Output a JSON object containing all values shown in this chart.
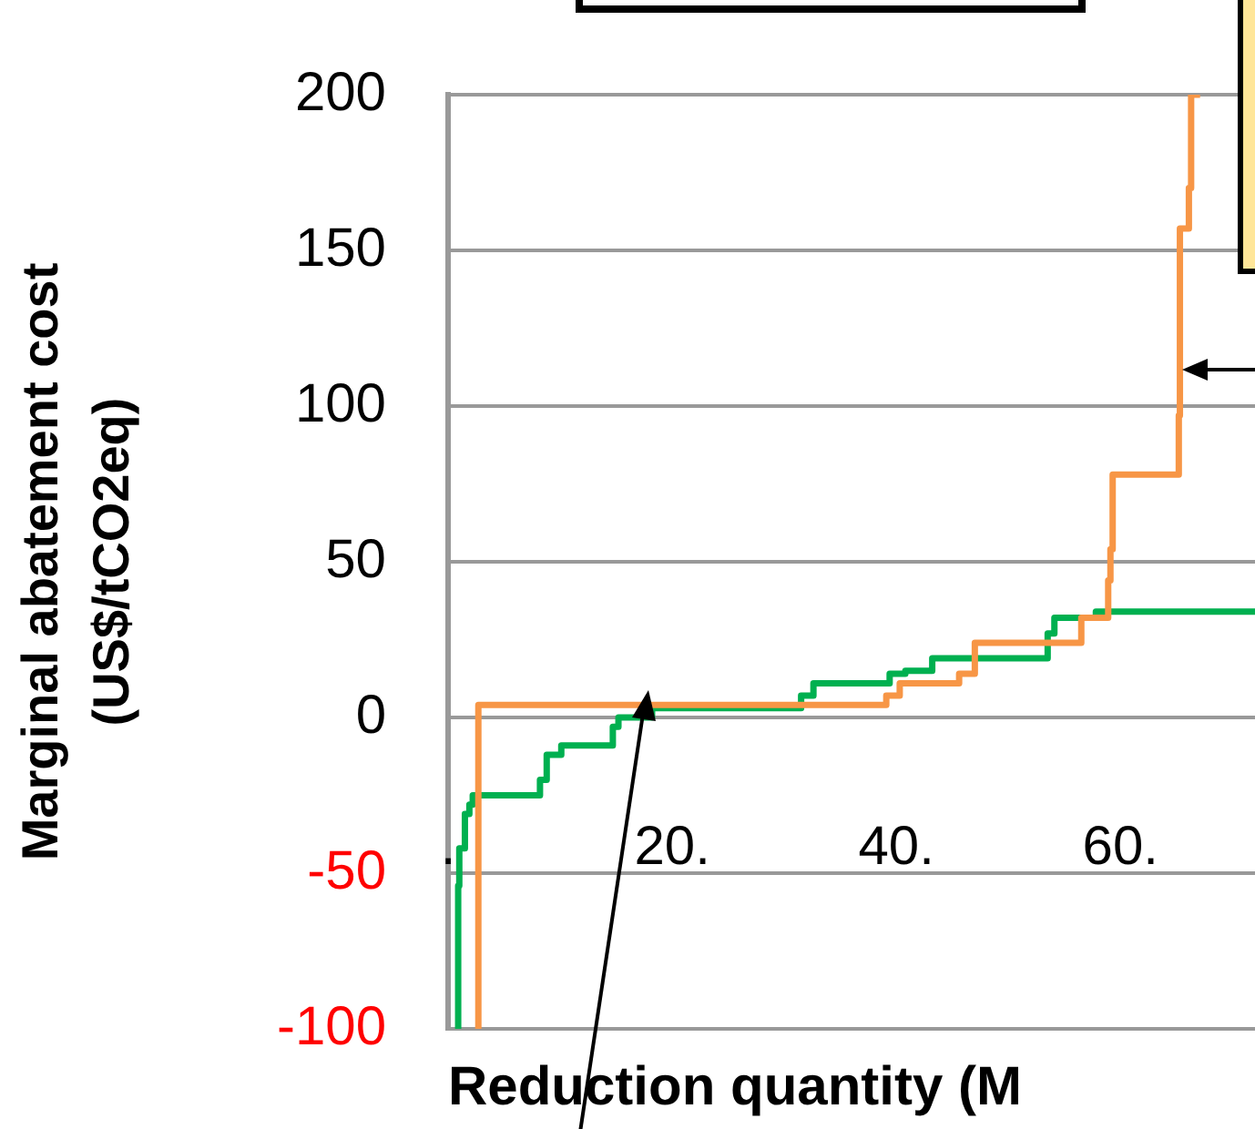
{
  "chart_data": {
    "type": "step",
    "xlabel": "Reduction quantity (M",
    "ylabel": "Marginal abatement cost\n(US$/tCO2eq)",
    "xlim": [
      0,
      72
    ],
    "xticks": [
      {
        "value": 0,
        "label": "."
      },
      {
        "value": 20,
        "label": "20."
      },
      {
        "value": 40,
        "label": "40."
      },
      {
        "value": 60,
        "label": "60."
      }
    ],
    "ylim": [
      -100,
      200
    ],
    "yticks": [
      -100,
      -50,
      0,
      50,
      100,
      150,
      200
    ],
    "grid": "y",
    "marker": "none",
    "line_style": "solid",
    "series": [
      {
        "color": "#f79646",
        "x": [
          2.7,
          2.7,
          39.1,
          40.3,
          45.6,
          47,
          56.5,
          58.9,
          59.1,
          59.3,
          65.2,
          65.3,
          66.1,
          66.3,
          67.1
        ],
        "values": [
          -100,
          1,
          4,
          7,
          11,
          14,
          24,
          32,
          44,
          54,
          78,
          97,
          157,
          170,
          200
        ]
      },
      {
        "color": "#00b050",
        "x": [
          0.9,
          1.0,
          1.5,
          1.9,
          2.2,
          8.2,
          8.8,
          10.1,
          14.7,
          15.2,
          18.2,
          31.5,
          32.6,
          39.4,
          40.8,
          43.2,
          53.5,
          54.1,
          57.8,
          58.6,
          72
        ],
        "values": [
          -100,
          -54,
          -42,
          -31,
          -28,
          -25,
          -20,
          -12,
          -9,
          -3,
          0,
          3,
          7,
          11,
          14,
          15,
          19,
          27,
          32,
          34,
          34
        ]
      }
    ]
  }
}
